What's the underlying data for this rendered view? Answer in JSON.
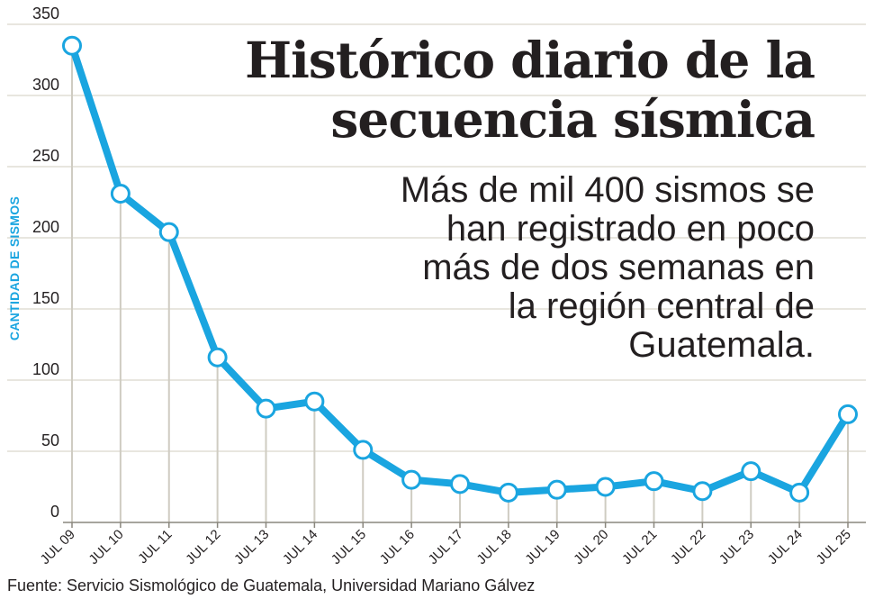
{
  "title": "Histórico diario de la secuencia sísmica",
  "subtitle": "Más de mil 400 sismos se han registrado en poco más de dos semanas en la región central de Guatemala.",
  "source": "Fuente: Servicio Sismológico de Guatemala, Universidad Mariano Gálvez",
  "colors": {
    "line": "#1aa5e0",
    "grid": "#d9d6cc",
    "drop": "#cfccc2",
    "text": "#231f20"
  },
  "chart_data": {
    "type": "line",
    "ylabel": "CANTIDAD DE SISMOS",
    "ylim": [
      0,
      350
    ],
    "yticks": [
      0,
      50,
      100,
      150,
      200,
      250,
      300,
      350
    ],
    "grid": true,
    "categories": [
      "JUL 09",
      "JUL 10",
      "JUL 11",
      "JUL 12",
      "JUL 13",
      "JUL 14",
      "JUL 15",
      "JUL 16",
      "JUL 17",
      "JUL 18",
      "JUL 19",
      "JUL 20",
      "JUL 21",
      "JUL 22",
      "JUL 23",
      "JUL 24",
      "JUL 25"
    ],
    "values": [
      335,
      231,
      204,
      116,
      80,
      85,
      51,
      30,
      27,
      21,
      23,
      25,
      29,
      22,
      36,
      21,
      76
    ]
  }
}
